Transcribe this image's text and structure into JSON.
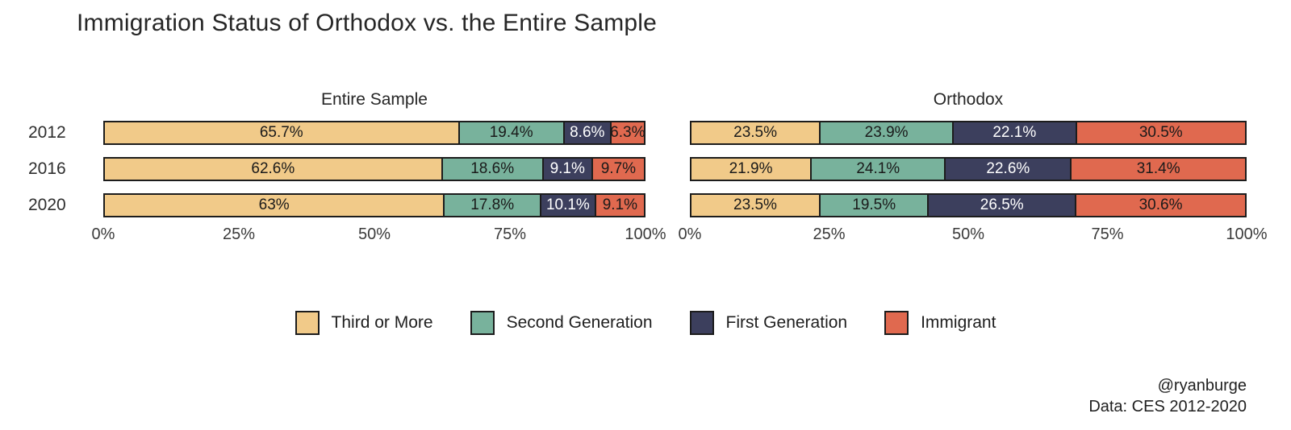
{
  "title": "Immigration Status of Orthodox vs. the Entire Sample",
  "attribution": {
    "handle": "@ryanburge",
    "source": "Data: CES 2012-2020"
  },
  "chart_data": {
    "type": "bar",
    "orientation": "horizontal",
    "stacked": true,
    "title": "Immigration Status of Orthodox vs. the Entire Sample",
    "years": [
      "2012",
      "2016",
      "2020"
    ],
    "categories": [
      "Third or More",
      "Second Generation",
      "First Generation",
      "Immigrant"
    ],
    "colors": [
      "#f1ca89",
      "#78b29c",
      "#3c3f5d",
      "#e0694f"
    ],
    "label_colors": [
      "#1a1a1a",
      "#1a1a1a",
      "#ffffff",
      "#1a1a1a"
    ],
    "x_axis": {
      "min": 0,
      "max": 100,
      "ticks": [
        "0%",
        "25%",
        "50%",
        "75%",
        "100%"
      ]
    },
    "panels": [
      {
        "title": "Entire Sample",
        "rows": [
          {
            "year": "2012",
            "values": [
              65.7,
              19.4,
              8.6,
              6.3
            ],
            "labels": [
              "65.7%",
              "19.4%",
              "8.6%",
              "6.3%"
            ]
          },
          {
            "year": "2016",
            "values": [
              62.6,
              18.6,
              9.1,
              9.7
            ],
            "labels": [
              "62.6%",
              "18.6%",
              "9.1%",
              "9.7%"
            ]
          },
          {
            "year": "2020",
            "values": [
              63,
              17.8,
              10.1,
              9.1
            ],
            "labels": [
              "63%",
              "17.8%",
              "10.1%",
              "9.1%"
            ]
          }
        ]
      },
      {
        "title": "Orthodox",
        "rows": [
          {
            "year": "2012",
            "values": [
              23.5,
              23.9,
              22.1,
              30.5
            ],
            "labels": [
              "23.5%",
              "23.9%",
              "22.1%",
              "30.5%"
            ]
          },
          {
            "year": "2016",
            "values": [
              21.9,
              24.1,
              22.6,
              31.4
            ],
            "labels": [
              "21.9%",
              "24.1%",
              "22.6%",
              "31.4%"
            ]
          },
          {
            "year": "2020",
            "values": [
              23.5,
              19.5,
              26.5,
              30.6
            ],
            "labels": [
              "23.5%",
              "19.5%",
              "26.5%",
              "30.6%"
            ]
          }
        ]
      }
    ],
    "legend": [
      {
        "label": "Third or More",
        "color": "#f1ca89"
      },
      {
        "label": "Second Generation",
        "color": "#78b29c"
      },
      {
        "label": "First Generation",
        "color": "#3c3f5d"
      },
      {
        "label": "Immigrant",
        "color": "#e0694f"
      }
    ]
  }
}
